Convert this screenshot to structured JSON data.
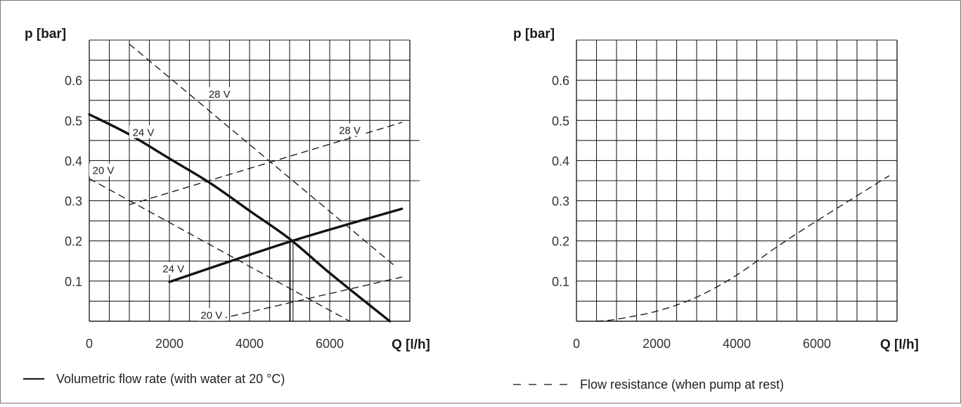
{
  "chart_data": [
    {
      "type": "line",
      "ylabel": "p [bar]",
      "xlabel": "Q [l/h]",
      "x_ticks": [
        "0",
        "2000",
        "4000",
        "6000"
      ],
      "y_ticks": [
        "0.1",
        "0.2",
        "0.3",
        "0.4",
        "0.5",
        "0.6"
      ],
      "xlim": [
        0,
        8000
      ],
      "ylim": [
        0,
        0.7
      ],
      "grid": true,
      "series": [
        {
          "label": "24 V",
          "style": "solid",
          "points": [
            [
              0,
              0.515
            ],
            [
              1000,
              0.465
            ],
            [
              2000,
              0.405
            ],
            [
              3000,
              0.345
            ],
            [
              4000,
              0.275
            ],
            [
              5000,
              0.205
            ],
            [
              6000,
              0.12
            ],
            [
              7500,
              0.0
            ]
          ]
        },
        {
          "label": "24 V",
          "style": "solid",
          "points": [
            [
              2000,
              0.098
            ],
            [
              5000,
              0.198
            ],
            [
              7800,
              0.28
            ]
          ]
        },
        {
          "label": "28 V",
          "style": "dashed",
          "points": [
            [
              1000,
              0.69
            ],
            [
              7600,
              0.14
            ]
          ]
        },
        {
          "label": "20 V",
          "style": "dashed",
          "points": [
            [
              0,
              0.355
            ],
            [
              6500,
              0.0
            ]
          ]
        },
        {
          "label": "28 V",
          "style": "dashed",
          "points": [
            [
              1000,
              0.29
            ],
            [
              7800,
              0.495
            ]
          ]
        },
        {
          "label": "20 V",
          "style": "dashed",
          "points": [
            [
              3000,
              0.0
            ],
            [
              7800,
              0.11
            ]
          ]
        }
      ],
      "curve_labels": [
        {
          "text": "28 V",
          "x": 3250,
          "y": 0.565
        },
        {
          "text": "24 V",
          "x": 1350,
          "y": 0.47
        },
        {
          "text": "28 V",
          "x": 6500,
          "y": 0.475
        },
        {
          "text": "20 V",
          "x": 350,
          "y": 0.375
        },
        {
          "text": "24 V",
          "x": 2100,
          "y": 0.13
        },
        {
          "text": "20 V",
          "x": 3050,
          "y": 0.015
        }
      ],
      "operating_point": {
        "x": 5050,
        "y": 0.2
      },
      "legend": {
        "text": "Volumetric flow rate (with water at 20 °C)",
        "style": "solid"
      }
    },
    {
      "type": "line",
      "ylabel": "p [bar]",
      "xlabel": "Q [l/h]",
      "x_ticks": [
        "0",
        "2000",
        "4000",
        "6000"
      ],
      "y_ticks": [
        "0.1",
        "0.2",
        "0.3",
        "0.4",
        "0.5",
        "0.6"
      ],
      "xlim": [
        0,
        8000
      ],
      "ylim": [
        0,
        0.7
      ],
      "grid": true,
      "series": [
        {
          "style": "dashed",
          "points": [
            [
              500,
              0.0
            ],
            [
              1000,
              0.005
            ],
            [
              2000,
              0.025
            ],
            [
              3000,
              0.06
            ],
            [
              4000,
              0.115
            ],
            [
              5000,
              0.185
            ],
            [
              6000,
              0.25
            ],
            [
              7800,
              0.362
            ]
          ]
        }
      ],
      "legend": {
        "text": "Flow resistance (when pump at rest)",
        "style": "dashed"
      }
    }
  ]
}
